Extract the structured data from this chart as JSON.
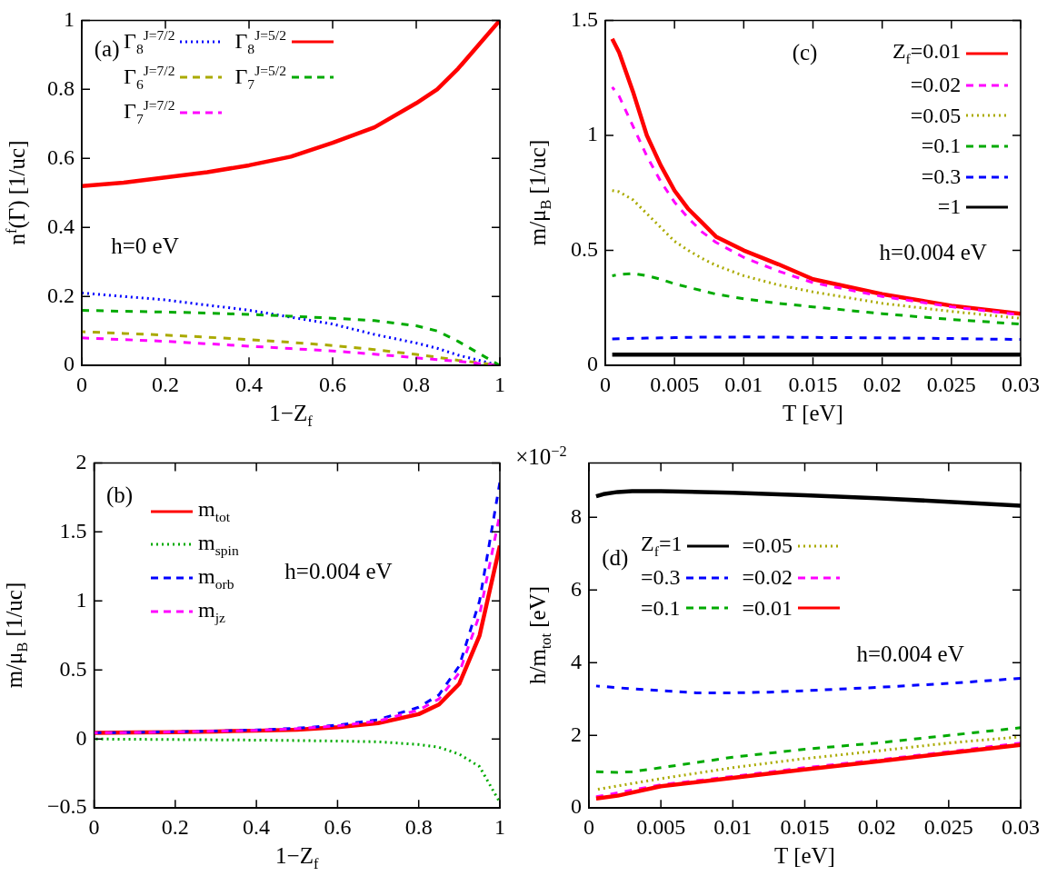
{
  "chart_data": [
    {
      "type": "line",
      "xlabel": "1−Z$_{f}$",
      "ylabel": "n$^{f}$(Γ) [1/uc]",
      "x": [
        0,
        0.1,
        0.2,
        0.3,
        0.4,
        0.5,
        0.6,
        0.7,
        0.8,
        0.85,
        0.9,
        0.95,
        1
      ],
      "xlim": [
        0,
        1
      ],
      "xticks": [
        0,
        0.2,
        0.4,
        0.6,
        0.8,
        1
      ],
      "ylim": [
        0,
        1
      ],
      "yticks": [
        0,
        0.2,
        0.4,
        0.6,
        0.8,
        1
      ],
      "legend": "top",
      "marker": "none",
      "annotations": [
        "(a)",
        "h=0 eV"
      ],
      "series": [
        {
          "name": "Γ$_{8}$$^{J=7/2}$",
          "color": "#0000ff",
          "line_style": "dotted",
          "values": [
            0.21,
            0.2,
            0.19,
            0.175,
            0.16,
            0.14,
            0.12,
            0.09,
            0.065,
            0.05,
            0.03,
            0.015,
            0
          ]
        },
        {
          "name": "Γ$_{6}$$^{J=7/2}$",
          "color": "#aaaa00",
          "line_style": "dashed",
          "values": [
            0.098,
            0.093,
            0.088,
            0.082,
            0.075,
            0.067,
            0.058,
            0.046,
            0.032,
            0.024,
            0.015,
            0.008,
            0
          ]
        },
        {
          "name": "Γ$_{7}$$^{J=7/2}$",
          "color": "#ff00ff",
          "line_style": "dashed",
          "values": [
            0.08,
            0.075,
            0.07,
            0.063,
            0.056,
            0.049,
            0.042,
            0.033,
            0.022,
            0.017,
            0.012,
            0.006,
            0
          ]
        },
        {
          "name": "Γ$_{8}$$^{J=5/2}$",
          "color": "#ff0000",
          "line_style": "solid",
          "values": [
            0.52,
            0.53,
            0.545,
            0.56,
            0.58,
            0.605,
            0.645,
            0.69,
            0.76,
            0.8,
            0.86,
            0.93,
            1
          ]
        },
        {
          "name": "Γ$_{7}$$^{J=5/2}$",
          "color": "#00aa00",
          "line_style": "dashed",
          "values": [
            0.16,
            0.157,
            0.155,
            0.152,
            0.148,
            0.143,
            0.137,
            0.13,
            0.115,
            0.1,
            0.07,
            0.035,
            0
          ]
        }
      ]
    },
    {
      "type": "line",
      "xlabel": "T [eV]",
      "ylabel": "m/μ$_{B}$ [1/uc]",
      "x": [
        0.0005,
        0.001,
        0.002,
        0.003,
        0.004,
        0.005,
        0.006,
        0.007,
        0.008,
        0.01,
        0.0125,
        0.015,
        0.02,
        0.025,
        0.03
      ],
      "xlim": [
        0,
        0.03
      ],
      "xticks": [
        0,
        0.005,
        0.01,
        0.015,
        0.02,
        0.025,
        0.03
      ],
      "ylim": [
        0,
        1.5
      ],
      "yticks": [
        0,
        0.5,
        1,
        1.5
      ],
      "legend": "top right",
      "marker": "none",
      "annotations": [
        "(c)",
        "h=0.004 eV"
      ],
      "series": [
        {
          "name": "Z$_{f}$=0.01",
          "color": "#ff0000",
          "line_style": "solid",
          "values": [
            1.42,
            1.36,
            1.19,
            1.0,
            0.87,
            0.76,
            0.68,
            0.62,
            0.56,
            0.5,
            0.44,
            0.375,
            0.31,
            0.26,
            0.225
          ]
        },
        {
          "name": "=0.02",
          "color": "#ff00ff",
          "line_style": "dashed",
          "values": [
            1.21,
            1.17,
            1.04,
            0.91,
            0.8,
            0.71,
            0.64,
            0.58,
            0.535,
            0.47,
            0.41,
            0.36,
            0.3,
            0.255,
            0.22
          ]
        },
        {
          "name": "=0.05",
          "color": "#aaaa00",
          "line_style": "dotted",
          "values": [
            0.76,
            0.755,
            0.72,
            0.66,
            0.6,
            0.54,
            0.5,
            0.465,
            0.435,
            0.39,
            0.35,
            0.32,
            0.27,
            0.235,
            0.205
          ]
        },
        {
          "name": "=0.1",
          "color": "#00aa00",
          "line_style": "dashed",
          "values": [
            0.39,
            0.395,
            0.4,
            0.39,
            0.375,
            0.355,
            0.34,
            0.325,
            0.31,
            0.29,
            0.27,
            0.255,
            0.225,
            0.2,
            0.18
          ]
        },
        {
          "name": "=0.3",
          "color": "#0000ff",
          "line_style": "dashed",
          "values": [
            0.115,
            0.116,
            0.118,
            0.119,
            0.12,
            0.121,
            0.122,
            0.123,
            0.123,
            0.124,
            0.123,
            0.122,
            0.12,
            0.117,
            0.113
          ]
        },
        {
          "name": "=1",
          "color": "#000000",
          "line_style": "solid",
          "values": [
            0.047,
            0.047,
            0.047,
            0.047,
            0.047,
            0.047,
            0.047,
            0.047,
            0.047,
            0.047,
            0.047,
            0.047,
            0.047,
            0.047,
            0.047
          ]
        }
      ]
    },
    {
      "type": "line",
      "xlabel": "1−Z$_{f}$",
      "ylabel": "m/μ$_{B}$ [1/uc]",
      "x": [
        0,
        0.1,
        0.2,
        0.3,
        0.4,
        0.5,
        0.6,
        0.7,
        0.8,
        0.85,
        0.9,
        0.95,
        1
      ],
      "xlim": [
        0,
        1
      ],
      "xticks": [
        0,
        0.2,
        0.4,
        0.6,
        0.8,
        1
      ],
      "ylim": [
        -0.5,
        2
      ],
      "yticks": [
        {
          "value": -0.5,
          "label": "−0.5"
        },
        0,
        0.5,
        1,
        1.5,
        2
      ],
      "legend": "top left",
      "marker": "none",
      "annotations": [
        "(b)",
        "h=0.004 eV"
      ],
      "series": [
        {
          "name": "m$_{tot}$",
          "color": "#ff0000",
          "line_style": "solid",
          "values": [
            0.045,
            0.047,
            0.05,
            0.055,
            0.06,
            0.068,
            0.085,
            0.115,
            0.18,
            0.25,
            0.4,
            0.75,
            1.4
          ]
        },
        {
          "name": "m$_{spin}$",
          "color": "#00aa00",
          "line_style": "dotted",
          "values": [
            0,
            -0.002,
            -0.004,
            -0.006,
            -0.008,
            -0.011,
            -0.015,
            -0.02,
            -0.04,
            -0.06,
            -0.11,
            -0.2,
            -0.46
          ]
        },
        {
          "name": "m$_{orb}$",
          "color": "#0000ff",
          "line_style": "dashed",
          "values": [
            0.045,
            0.048,
            0.052,
            0.058,
            0.065,
            0.078,
            0.1,
            0.14,
            0.23,
            0.32,
            0.53,
            1.0,
            1.86
          ]
        },
        {
          "name": "m$_{jz}$",
          "color": "#ff00ff",
          "line_style": "dashed",
          "values": [
            0.045,
            0.047,
            0.051,
            0.057,
            0.063,
            0.075,
            0.095,
            0.13,
            0.21,
            0.29,
            0.48,
            0.9,
            1.63
          ]
        }
      ]
    },
    {
      "type": "line",
      "xlabel": "T [eV]",
      "ylabel": "h/m$_{tot}$ [eV]",
      "xlim": [
        0,
        0.03
      ],
      "xticks": [
        0,
        0.005,
        0.01,
        0.015,
        0.02,
        0.025,
        0.03
      ],
      "ylim": [
        0,
        9.5
      ],
      "yticks": [
        0,
        2,
        4,
        6,
        8
      ],
      "legend": "top",
      "marker": "none",
      "annotations": [
        "(d)",
        "h=0.004 eV",
        "×10$^{−2}$"
      ],
      "series": [
        {
          "name": "Z$_{f}$=1",
          "color": "#000000",
          "line_style": "solid",
          "x": [
            0.0005,
            0.001,
            0.002,
            0.003,
            0.005,
            0.01,
            0.015,
            0.02,
            0.025,
            0.03
          ],
          "values": [
            8.58,
            8.64,
            8.7,
            8.72,
            8.72,
            8.68,
            8.61,
            8.53,
            8.43,
            8.32
          ]
        },
        {
          "name": "=0.3",
          "color": "#0000ff",
          "line_style": "dashed",
          "x": [
            0.0005,
            0.003,
            0.005,
            0.0075,
            0.01,
            0.0125,
            0.015,
            0.02,
            0.025,
            0.03
          ],
          "values": [
            3.36,
            3.28,
            3.23,
            3.17,
            3.17,
            3.19,
            3.23,
            3.32,
            3.43,
            3.57
          ]
        },
        {
          "name": "=0.1",
          "color": "#00aa00",
          "line_style": "dashed",
          "x": [
            0.0005,
            0.002,
            0.003,
            0.005,
            0.01,
            0.015,
            0.02,
            0.025,
            0.03
          ],
          "values": [
            1.0,
            0.98,
            1.0,
            1.11,
            1.4,
            1.62,
            1.79,
            2.0,
            2.21
          ]
        },
        {
          "name": "=0.05",
          "color": "#aaaa00",
          "line_style": "dotted",
          "x": [
            0.0005,
            0.005,
            0.01,
            0.015,
            0.02,
            0.025,
            0.03
          ],
          "values": [
            0.51,
            0.81,
            1.11,
            1.36,
            1.57,
            1.79,
            1.96
          ]
        },
        {
          "name": "=0.02",
          "color": "#ff00ff",
          "line_style": "dashed",
          "x": [
            0.0005,
            0.005,
            0.01,
            0.015,
            0.02,
            0.025,
            0.03
          ],
          "values": [
            0.31,
            0.64,
            0.87,
            1.11,
            1.32,
            1.55,
            1.79
          ]
        },
        {
          "name": "=0.01",
          "color": "#ff0000",
          "line_style": "solid",
          "x": [
            0.0005,
            0.002,
            0.005,
            0.01,
            0.015,
            0.02,
            0.025,
            0.03
          ],
          "values": [
            0.26,
            0.34,
            0.6,
            0.83,
            1.06,
            1.28,
            1.51,
            1.74
          ]
        }
      ]
    }
  ]
}
